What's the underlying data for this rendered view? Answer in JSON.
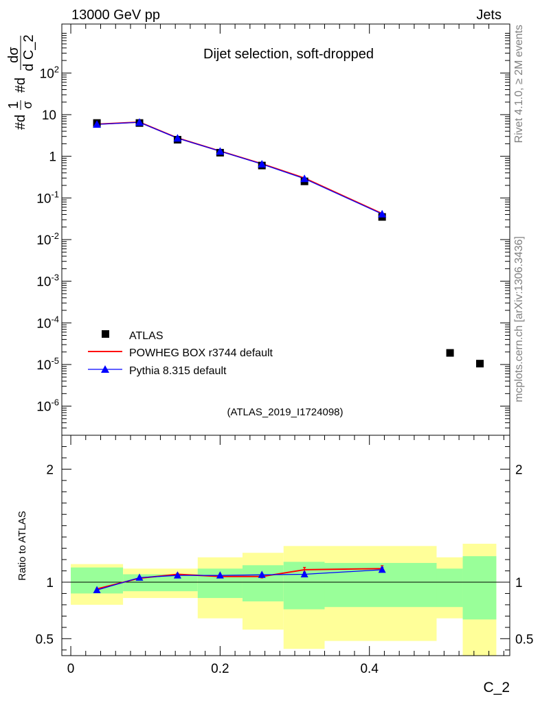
{
  "header": {
    "energy_label": "13000 GeV pp",
    "category_label": "Jets"
  },
  "side_labels": {
    "rivet": "Rivet 4.1.0, ≥ 2M events",
    "mcplots": "mcplots.cern.ch [arXiv:1306.3436]"
  },
  "chart_data": [
    {
      "type": "line",
      "panel": "main",
      "title": "Dijet selection, soft-dropped",
      "ylabel": "#d 1/σ #d dσ/d C_2",
      "ylabel_parts": {
        "prefix": "#d",
        "frac1_num": "1",
        "frac1_den": "σ",
        "middle": "#d",
        "frac2_num": "dσ",
        "frac2_den": "d C_2"
      },
      "xlabel": "C_2",
      "yscale": "log",
      "ylim": [
        2e-07,
        1500
      ],
      "xlim": [
        -0.012,
        0.588
      ],
      "yticks": [
        {
          "mantissa": "10",
          "exp": "-6",
          "value": 1e-06
        },
        {
          "mantissa": "10",
          "exp": "-5",
          "value": 1e-05
        },
        {
          "mantissa": "10",
          "exp": "-4",
          "value": 0.0001
        },
        {
          "mantissa": "10",
          "exp": "-3",
          "value": 0.001
        },
        {
          "mantissa": "10",
          "exp": "-2",
          "value": 0.01
        },
        {
          "mantissa": "10",
          "exp": "-1",
          "value": 0.1
        },
        {
          "mantissa": "1",
          "exp": "",
          "value": 1
        },
        {
          "mantissa": "10",
          "exp": "",
          "value": 10
        },
        {
          "mantissa": "10",
          "exp": "2",
          "value": 100
        }
      ],
      "watermark": "(ATLAS_2019_I1724098)",
      "legend_position": "middle-left",
      "series": [
        {
          "name": "ATLAS",
          "style": "square-marker",
          "color": "#000000",
          "x": [
            0.035,
            0.092,
            0.143,
            0.2,
            0.256,
            0.313,
            0.417,
            0.508,
            0.548
          ],
          "y": [
            6.3,
            6.3,
            2.5,
            1.22,
            0.6,
            0.25,
            0.035,
            1.9e-05,
            1.05e-05
          ]
        },
        {
          "name": "POWHEG BOX r3744 default",
          "style": "line",
          "color": "#ff0000",
          "x": [
            0.035,
            0.092,
            0.143,
            0.2,
            0.256,
            0.313,
            0.417
          ],
          "y": [
            5.9,
            6.6,
            2.75,
            1.33,
            0.66,
            0.3,
            0.042
          ]
        },
        {
          "name": "Pythia 8.315 default",
          "style": "line-triangle",
          "color": "#0000ff",
          "x": [
            0.035,
            0.092,
            0.143,
            0.2,
            0.256,
            0.313,
            0.417
          ],
          "y": [
            5.85,
            6.55,
            2.72,
            1.32,
            0.65,
            0.29,
            0.041
          ]
        }
      ]
    },
    {
      "type": "line",
      "panel": "ratio",
      "ylabel": "Ratio to ATLAS",
      "xlabel": "C_2",
      "ylim": [
        0.35,
        2.3
      ],
      "xlim": [
        -0.012,
        0.588
      ],
      "yticks": [
        0.5,
        1,
        2
      ],
      "ytick_labels": [
        "0.5",
        "1",
        "2"
      ],
      "xticks": [
        0,
        0.2,
        0.4
      ],
      "xtick_labels": [
        "0",
        "0.2",
        "0.4"
      ],
      "reference_line": 1,
      "bands": {
        "edges": [
          0.0,
          0.07,
          0.17,
          0.23,
          0.285,
          0.34,
          0.49,
          0.525,
          0.57
        ],
        "inner": [
          [
            0.9,
            1.13
          ],
          [
            0.92,
            1.07
          ],
          [
            0.86,
            1.12
          ],
          [
            0.83,
            1.15
          ],
          [
            0.76,
            1.18
          ],
          [
            0.78,
            1.17
          ],
          [
            0.78,
            1.12
          ],
          [
            0.67,
            1.23
          ]
        ],
        "outer": [
          [
            0.8,
            1.16
          ],
          [
            0.86,
            1.12
          ],
          [
            0.68,
            1.22
          ],
          [
            0.58,
            1.26
          ],
          [
            0.41,
            1.32
          ],
          [
            0.48,
            1.32
          ],
          [
            0.68,
            1.22
          ],
          [
            0.35,
            1.34
          ]
        ],
        "inner_color": "#99ff99",
        "outer_color": "#ffff99"
      },
      "series": [
        {
          "name": "POWHEG BOX r3744 default",
          "color": "#ff0000",
          "x": [
            0.035,
            0.092,
            0.143,
            0.2,
            0.256,
            0.313,
            0.417
          ],
          "y": [
            0.94,
            1.035,
            1.07,
            1.05,
            1.05,
            1.11,
            1.12
          ],
          "err": [
            0.004,
            0.006,
            0.008,
            0.01,
            0.012,
            0.02,
            0.025
          ]
        },
        {
          "name": "Pythia 8.315 default",
          "color": "#0000ff",
          "x": [
            0.035,
            0.092,
            0.143,
            0.2,
            0.256,
            0.313,
            0.417
          ],
          "y": [
            0.93,
            1.04,
            1.06,
            1.06,
            1.065,
            1.07,
            1.11
          ],
          "err": [
            0.004,
            0.006,
            0.008,
            0.01,
            0.012,
            0.016,
            0.02
          ]
        }
      ]
    }
  ]
}
